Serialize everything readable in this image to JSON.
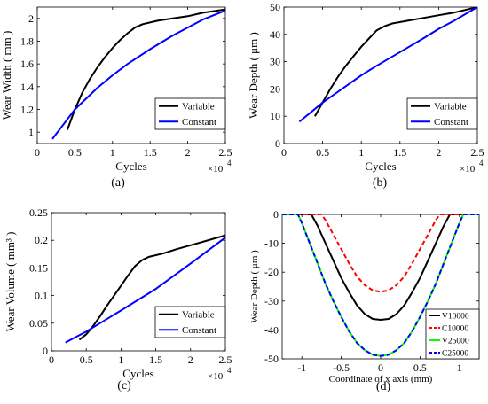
{
  "chart_data": [
    {
      "id": "a",
      "panel_label": "(a)",
      "type": "line",
      "xlabel": "Cycles",
      "ylabel": "Wear Width ( mm )",
      "x_multiplier": "×10",
      "x_multiplier_exp": "4",
      "xlim": [
        0,
        2.5
      ],
      "ylim": [
        0.9,
        2.1
      ],
      "xticks": [
        0,
        0.5,
        1,
        1.5,
        2,
        2.5
      ],
      "xtick_labels": [
        "0",
        "0.5",
        "1",
        "1.5",
        "2",
        "2.5"
      ],
      "yticks": [
        1,
        1.2,
        1.4,
        1.6,
        1.8,
        2
      ],
      "ytick_labels": [
        "1",
        "1.2",
        "1.4",
        "1.6",
        "1.8",
        "2"
      ],
      "legend_position": "bottom-right",
      "grid": false,
      "series": [
        {
          "name": "Variable",
          "color": "#000000",
          "dash": "solid",
          "x": [
            0.4,
            0.5,
            0.6,
            0.7,
            0.8,
            0.9,
            1.0,
            1.1,
            1.2,
            1.3,
            1.4,
            1.6,
            1.8,
            2.0,
            2.2,
            2.5
          ],
          "y": [
            1.02,
            1.2,
            1.35,
            1.47,
            1.57,
            1.66,
            1.74,
            1.81,
            1.87,
            1.92,
            1.95,
            1.98,
            2.0,
            2.02,
            2.05,
            2.08
          ]
        },
        {
          "name": "Constant",
          "color": "#0000FF",
          "dash": "solid",
          "x": [
            0.2,
            0.5,
            0.8,
            1.0,
            1.2,
            1.5,
            1.8,
            2.0,
            2.2,
            2.5
          ],
          "y": [
            0.94,
            1.2,
            1.39,
            1.5,
            1.6,
            1.73,
            1.85,
            1.92,
            1.99,
            2.07
          ]
        }
      ]
    },
    {
      "id": "b",
      "panel_label": "(b)",
      "type": "line",
      "xlabel": "Cycles",
      "ylabel": "Wear Depth ( μm )",
      "x_multiplier": "×10",
      "x_multiplier_exp": "4",
      "xlim": [
        0,
        2.5
      ],
      "ylim": [
        0,
        50
      ],
      "xticks": [
        0,
        0.5,
        1,
        1.5,
        2,
        2.5
      ],
      "xtick_labels": [
        "0",
        "0.5",
        "1",
        "1.5",
        "2",
        "2.5"
      ],
      "yticks": [
        0,
        10,
        20,
        30,
        40,
        50
      ],
      "ytick_labels": [
        "0",
        "10",
        "20",
        "30",
        "40",
        "50"
      ],
      "legend_position": "bottom-right",
      "grid": false,
      "series": [
        {
          "name": "Variable",
          "color": "#000000",
          "dash": "solid",
          "x": [
            0.4,
            0.5,
            0.6,
            0.7,
            0.8,
            0.9,
            1.0,
            1.1,
            1.2,
            1.3,
            1.4,
            1.6,
            1.8,
            2.0,
            2.2,
            2.5
          ],
          "y": [
            10,
            15,
            20,
            24.5,
            28.5,
            32,
            35.5,
            38.5,
            41.5,
            43,
            44,
            45,
            46,
            47,
            48,
            50
          ]
        },
        {
          "name": "Constant",
          "color": "#0000FF",
          "dash": "solid",
          "x": [
            0.2,
            0.5,
            0.8,
            1.0,
            1.2,
            1.5,
            1.8,
            2.0,
            2.2,
            2.5
          ],
          "y": [
            8,
            15,
            21,
            25,
            28.5,
            33.5,
            38.5,
            42,
            45,
            50
          ]
        }
      ]
    },
    {
      "id": "c",
      "panel_label": "(c)",
      "type": "line",
      "xlabel": "Cycles",
      "ylabel": "Wear Volume ( mm³ )",
      "x_multiplier": "×10",
      "x_multiplier_exp": "4",
      "xlim": [
        0,
        2.5
      ],
      "ylim": [
        0,
        0.25
      ],
      "xticks": [
        0,
        0.5,
        1,
        1.5,
        2,
        2.5
      ],
      "xtick_labels": [
        "0",
        "0.5",
        "1",
        "1.5",
        "2",
        "2.5"
      ],
      "yticks": [
        0,
        0.05,
        0.1,
        0.15,
        0.2,
        0.25
      ],
      "ytick_labels": [
        "0",
        "0.05",
        "0.1",
        "0.15",
        "0.2",
        "0.25"
      ],
      "legend_position": "bottom-right",
      "grid": false,
      "series": [
        {
          "name": "Variable",
          "color": "#000000",
          "dash": "solid",
          "x": [
            0.4,
            0.5,
            0.6,
            0.7,
            0.8,
            0.9,
            1.0,
            1.1,
            1.2,
            1.3,
            1.4,
            1.6,
            1.8,
            2.0,
            2.2,
            2.5
          ],
          "y": [
            0.02,
            0.03,
            0.045,
            0.063,
            0.082,
            0.1,
            0.118,
            0.136,
            0.153,
            0.164,
            0.17,
            0.176,
            0.184,
            0.191,
            0.198,
            0.209
          ]
        },
        {
          "name": "Constant",
          "color": "#0000FF",
          "dash": "solid",
          "x": [
            0.2,
            0.5,
            1.0,
            1.5,
            2.0,
            2.5
          ],
          "y": [
            0.015,
            0.035,
            0.073,
            0.112,
            0.158,
            0.205
          ]
        }
      ]
    },
    {
      "id": "d",
      "panel_label": "(d)",
      "type": "line",
      "xlabel": "Coordinate of x axis (mm)",
      "ylabel": "Wear Depth ( μm )",
      "xlim": [
        -1.25,
        1.25
      ],
      "ylim": [
        -50,
        0
      ],
      "xticks": [
        -1,
        -0.5,
        0,
        0.5,
        1
      ],
      "xtick_labels": [
        "-1",
        "-0.5",
        "0",
        "0.5",
        "1"
      ],
      "yticks": [
        -50,
        -40,
        -30,
        -20,
        -10,
        0
      ],
      "ytick_labels": [
        "-50",
        "-40",
        "-30",
        "-20",
        "-10",
        "0"
      ],
      "legend_position": "bottom-right",
      "grid": false,
      "series": [
        {
          "name": "V10000",
          "color": "#000000",
          "dash": "solid",
          "x": [
            -1.25,
            -0.88,
            -0.8,
            -0.7,
            -0.6,
            -0.5,
            -0.4,
            -0.3,
            -0.2,
            -0.1,
            0,
            0.1,
            0.2,
            0.3,
            0.4,
            0.5,
            0.6,
            0.7,
            0.8,
            0.88,
            1.25
          ],
          "y": [
            0,
            0,
            -4,
            -10,
            -16,
            -22,
            -27,
            -31.5,
            -34.5,
            -36.2,
            -36.5,
            -36.2,
            -34.5,
            -31.5,
            -27,
            -22,
            -16,
            -10,
            -4,
            0,
            0
          ]
        },
        {
          "name": "C10000",
          "color": "#FF0000",
          "dash": "dashed",
          "x": [
            -1.25,
            -0.75,
            -0.7,
            -0.6,
            -0.5,
            -0.4,
            -0.3,
            -0.2,
            -0.1,
            0,
            0.1,
            0.2,
            0.3,
            0.4,
            0.5,
            0.6,
            0.7,
            0.75,
            1.25
          ],
          "y": [
            0,
            0,
            -2,
            -7,
            -12,
            -17,
            -21.5,
            -24.5,
            -26.3,
            -26.8,
            -26.3,
            -24.5,
            -21.5,
            -17,
            -12,
            -7,
            -2,
            0,
            0
          ]
        },
        {
          "name": "V25000",
          "color": "#00FF00",
          "dash": "solid",
          "x": [
            -1.25,
            -1.05,
            -1.0,
            -0.9,
            -0.8,
            -0.7,
            -0.6,
            -0.5,
            -0.4,
            -0.3,
            -0.2,
            -0.1,
            0,
            0.1,
            0.2,
            0.3,
            0.4,
            0.5,
            0.6,
            0.7,
            0.8,
            0.9,
            1.0,
            1.05,
            1.25
          ],
          "y": [
            0,
            0,
            -3,
            -10,
            -17,
            -24,
            -30,
            -35.5,
            -40.5,
            -44.5,
            -47,
            -48.6,
            -49,
            -48.6,
            -47,
            -44.5,
            -40.5,
            -35.5,
            -30,
            -24,
            -17,
            -10,
            -3,
            0,
            0
          ]
        },
        {
          "name": "C25000",
          "color": "#0000FF",
          "dash": "dashed",
          "x": [
            -1.25,
            -1.05,
            -1.0,
            -0.9,
            -0.8,
            -0.7,
            -0.6,
            -0.5,
            -0.4,
            -0.3,
            -0.2,
            -0.1,
            0,
            0.1,
            0.2,
            0.3,
            0.4,
            0.5,
            0.6,
            0.7,
            0.8,
            0.9,
            1.0,
            1.05,
            1.25
          ],
          "y": [
            0,
            0,
            -3,
            -10,
            -17,
            -24,
            -30,
            -35.5,
            -40.5,
            -44.5,
            -47,
            -48.6,
            -49,
            -48.6,
            -47,
            -44.5,
            -40.5,
            -35.5,
            -30,
            -24,
            -17,
            -10,
            -3,
            0,
            0
          ]
        }
      ]
    }
  ]
}
